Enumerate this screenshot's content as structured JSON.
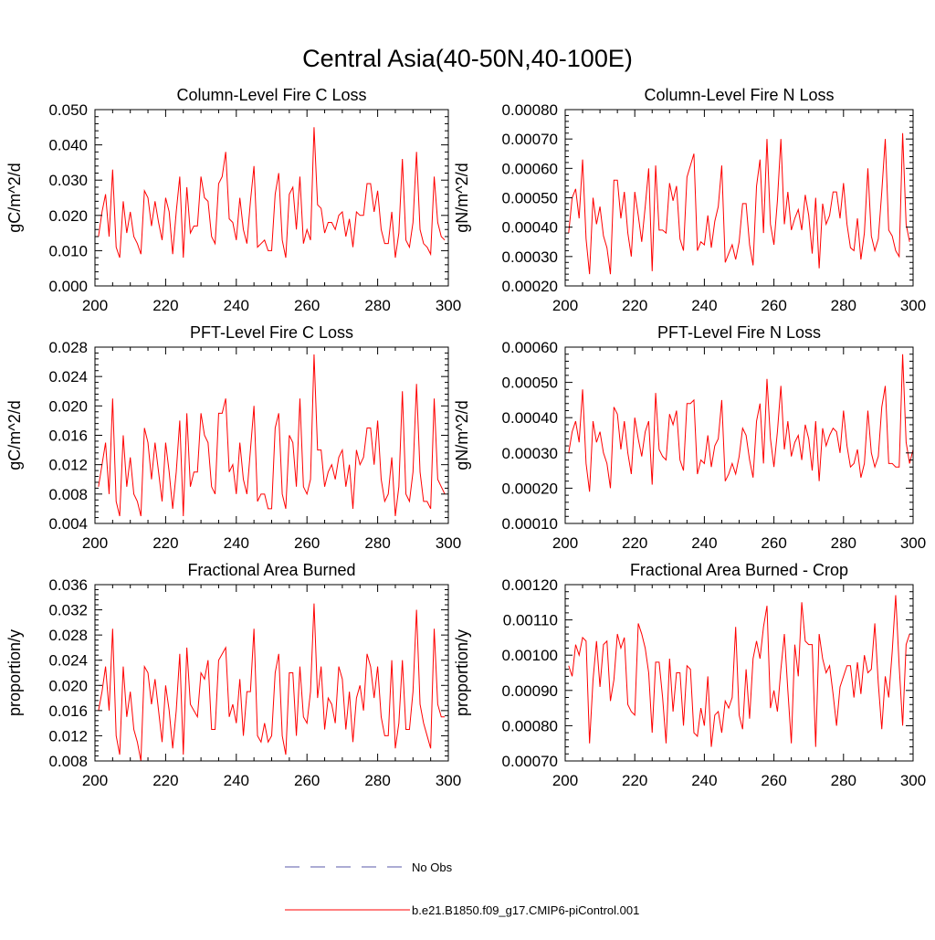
{
  "figure": {
    "title": "Central Asia(40-50N,40-100E)",
    "colors": {
      "model": "#ff0000",
      "obs": "#5a5aa8",
      "axis": "#000000"
    },
    "legend": {
      "entries": [
        {
          "label": "No Obs",
          "style": "dashed",
          "color": "#5a5aa8"
        },
        {
          "label": "b.e21.B1850.f09_g17.CMIP6-piControl.001",
          "style": "solid",
          "color": "#ff0000"
        }
      ]
    }
  },
  "chart_data": [
    {
      "type": "line",
      "title": "Column-Level Fire C Loss",
      "ylabel": "gC/m^2/d",
      "xlabel": "",
      "xlim": [
        200,
        300
      ],
      "ylim": [
        0.0,
        0.05
      ],
      "xticks": [
        "200",
        "220",
        "240",
        "260",
        "280",
        "300"
      ],
      "yticks": [
        "0.000",
        "0.010",
        "0.020",
        "0.030",
        "0.040",
        "0.050"
      ],
      "series": [
        {
          "name": "b.e21.B1850.f09_g17.CMIP6-piControl.001",
          "x_start": 201,
          "x_step": 1,
          "values": [
            0.014,
            0.021,
            0.026,
            0.014,
            0.033,
            0.011,
            0.008,
            0.024,
            0.015,
            0.021,
            0.014,
            0.012,
            0.009,
            0.027,
            0.025,
            0.017,
            0.024,
            0.018,
            0.013,
            0.025,
            0.021,
            0.009,
            0.021,
            0.031,
            0.008,
            0.028,
            0.015,
            0.017,
            0.017,
            0.031,
            0.025,
            0.024,
            0.014,
            0.012,
            0.029,
            0.031,
            0.038,
            0.019,
            0.018,
            0.013,
            0.025,
            0.016,
            0.012,
            0.024,
            0.034,
            0.011,
            0.012,
            0.013,
            0.01,
            0.01,
            0.026,
            0.032,
            0.013,
            0.008,
            0.026,
            0.028,
            0.016,
            0.031,
            0.012,
            0.016,
            0.013,
            0.045,
            0.023,
            0.022,
            0.015,
            0.018,
            0.018,
            0.016,
            0.02,
            0.021,
            0.014,
            0.019,
            0.011,
            0.021,
            0.02,
            0.02,
            0.029,
            0.029,
            0.021,
            0.027,
            0.016,
            0.012,
            0.012,
            0.021,
            0.008,
            0.015,
            0.036,
            0.013,
            0.011,
            0.018,
            0.038,
            0.016,
            0.012,
            0.011,
            0.009,
            0.031,
            0.018,
            0.014,
            0.013
          ]
        }
      ]
    },
    {
      "type": "line",
      "title": "Column-Level Fire N Loss",
      "ylabel": "gN/m^2/d",
      "xlabel": "",
      "xlim": [
        200,
        300
      ],
      "ylim": [
        0.0002,
        0.0008
      ],
      "xticks": [
        "200",
        "220",
        "240",
        "260",
        "280",
        "300"
      ],
      "yticks": [
        "0.00020",
        "0.00030",
        "0.00040",
        "0.00050",
        "0.00060",
        "0.00070",
        "0.00080"
      ],
      "series": [
        {
          "name": "b.e21.B1850.f09_g17.CMIP6-piControl.001",
          "x_start": 201,
          "x_step": 1,
          "values": [
            0.00038,
            0.0005,
            0.00053,
            0.00043,
            0.00063,
            0.00036,
            0.00024,
            0.0005,
            0.00041,
            0.00047,
            0.00037,
            0.00033,
            0.00024,
            0.00056,
            0.00056,
            0.00043,
            0.00052,
            0.00038,
            0.0003,
            0.00052,
            0.00044,
            0.00035,
            0.00047,
            0.0006,
            0.00025,
            0.00061,
            0.00039,
            0.00039,
            0.00038,
            0.00055,
            0.00049,
            0.00054,
            0.00036,
            0.00032,
            0.00057,
            0.00061,
            0.00065,
            0.00032,
            0.00035,
            0.00034,
            0.00044,
            0.00033,
            0.00042,
            0.00047,
            0.00061,
            0.00028,
            0.00031,
            0.00034,
            0.00029,
            0.00035,
            0.00048,
            0.00048,
            0.00034,
            0.00027,
            0.00054,
            0.00063,
            0.00038,
            0.0007,
            0.00041,
            0.00034,
            0.00049,
            0.0007,
            0.00041,
            0.00052,
            0.00039,
            0.00043,
            0.00046,
            0.00039,
            0.00051,
            0.00044,
            0.00031,
            0.0005,
            0.00026,
            0.00048,
            0.00041,
            0.00044,
            0.00052,
            0.00052,
            0.00043,
            0.00055,
            0.00041,
            0.00033,
            0.00032,
            0.00043,
            0.00029,
            0.00038,
            0.0006,
            0.00037,
            0.00032,
            0.00036,
            0.00052,
            0.0007,
            0.00039,
            0.00037,
            0.00032,
            0.0003,
            0.00072,
            0.00041,
            0.00035
          ]
        }
      ]
    },
    {
      "type": "line",
      "title": "PFT-Level Fire C Loss",
      "ylabel": "gC/m^2/d",
      "xlabel": "",
      "xlim": [
        200,
        300
      ],
      "ylim": [
        0.004,
        0.028
      ],
      "xticks": [
        "200",
        "220",
        "240",
        "260",
        "280",
        "300"
      ],
      "yticks": [
        "0.004",
        "0.008",
        "0.012",
        "0.016",
        "0.020",
        "0.024",
        "0.028"
      ],
      "series": [
        {
          "name": "b.e21.B1850.f09_g17.CMIP6-piControl.001",
          "x_start": 201,
          "x_step": 1,
          "values": [
            0.009,
            0.012,
            0.015,
            0.008,
            0.021,
            0.007,
            0.005,
            0.016,
            0.009,
            0.013,
            0.008,
            0.007,
            0.005,
            0.017,
            0.015,
            0.01,
            0.015,
            0.011,
            0.007,
            0.015,
            0.011,
            0.006,
            0.011,
            0.018,
            0.005,
            0.019,
            0.009,
            0.011,
            0.011,
            0.019,
            0.016,
            0.015,
            0.009,
            0.008,
            0.019,
            0.019,
            0.021,
            0.011,
            0.012,
            0.008,
            0.015,
            0.01,
            0.008,
            0.014,
            0.02,
            0.007,
            0.008,
            0.008,
            0.006,
            0.006,
            0.017,
            0.019,
            0.008,
            0.006,
            0.016,
            0.015,
            0.009,
            0.021,
            0.009,
            0.008,
            0.01,
            0.027,
            0.014,
            0.014,
            0.009,
            0.011,
            0.012,
            0.01,
            0.013,
            0.014,
            0.009,
            0.012,
            0.006,
            0.014,
            0.012,
            0.013,
            0.017,
            0.017,
            0.012,
            0.018,
            0.01,
            0.007,
            0.008,
            0.013,
            0.005,
            0.009,
            0.022,
            0.008,
            0.007,
            0.011,
            0.023,
            0.011,
            0.007,
            0.007,
            0.006,
            0.021,
            0.01,
            0.009,
            0.008
          ]
        }
      ]
    },
    {
      "type": "line",
      "title": "PFT-Level Fire N Loss",
      "ylabel": "gN/m^2/d",
      "xlabel": "",
      "xlim": [
        200,
        300
      ],
      "ylim": [
        0.0001,
        0.0006
      ],
      "xticks": [
        "200",
        "220",
        "240",
        "260",
        "280",
        "300"
      ],
      "yticks": [
        "0.00010",
        "0.00020",
        "0.00030",
        "0.00040",
        "0.00050",
        "0.00060"
      ],
      "series": [
        {
          "name": "b.e21.B1850.f09_g17.CMIP6-piControl.001",
          "x_start": 201,
          "x_step": 1,
          "values": [
            0.0003,
            0.00036,
            0.00039,
            0.00033,
            0.00048,
            0.00027,
            0.00019,
            0.00039,
            0.00033,
            0.00036,
            0.0003,
            0.00027,
            0.0002,
            0.00043,
            0.00041,
            0.00031,
            0.00039,
            0.0003,
            0.00024,
            0.0004,
            0.00034,
            0.00029,
            0.00036,
            0.00039,
            0.00021,
            0.00047,
            0.00031,
            0.00029,
            0.00028,
            0.00041,
            0.00038,
            0.00042,
            0.00028,
            0.00025,
            0.00044,
            0.00044,
            0.00045,
            0.00024,
            0.00028,
            0.00027,
            0.00035,
            0.00026,
            0.00032,
            0.00034,
            0.00045,
            0.00022,
            0.00024,
            0.00027,
            0.00024,
            0.00029,
            0.00037,
            0.00035,
            0.00028,
            0.00023,
            0.00039,
            0.00044,
            0.00027,
            0.00051,
            0.00034,
            0.00026,
            0.00036,
            0.00049,
            0.00031,
            0.00039,
            0.00029,
            0.00033,
            0.00035,
            0.00028,
            0.00038,
            0.00034,
            0.00025,
            0.00039,
            0.00022,
            0.00037,
            0.00032,
            0.00035,
            0.00037,
            0.00036,
            0.0003,
            0.00042,
            0.00032,
            0.00026,
            0.00027,
            0.00031,
            0.00023,
            0.00027,
            0.00042,
            0.0003,
            0.00026,
            0.00029,
            0.00043,
            0.00049,
            0.00027,
            0.00027,
            0.00026,
            0.00026,
            0.00058,
            0.00033,
            0.00027,
            0.00031
          ]
        }
      ]
    },
    {
      "type": "line",
      "title": "Fractional Area Burned",
      "ylabel": "proportion/y",
      "xlabel": "",
      "xlim": [
        200,
        300
      ],
      "ylim": [
        0.008,
        0.036
      ],
      "xticks": [
        "200",
        "220",
        "240",
        "260",
        "280",
        "300"
      ],
      "yticks": [
        "0.008",
        "0.012",
        "0.016",
        "0.020",
        "0.024",
        "0.028",
        "0.032",
        "0.036"
      ],
      "series": [
        {
          "name": "b.e21.B1850.f09_g17.CMIP6-piControl.001",
          "x_start": 201,
          "x_step": 1,
          "values": [
            0.016,
            0.019,
            0.023,
            0.016,
            0.029,
            0.012,
            0.009,
            0.023,
            0.015,
            0.019,
            0.013,
            0.011,
            0.008,
            0.023,
            0.022,
            0.017,
            0.021,
            0.016,
            0.011,
            0.02,
            0.016,
            0.01,
            0.016,
            0.025,
            0.009,
            0.026,
            0.017,
            0.016,
            0.015,
            0.022,
            0.021,
            0.024,
            0.013,
            0.013,
            0.024,
            0.025,
            0.026,
            0.015,
            0.017,
            0.014,
            0.021,
            0.012,
            0.019,
            0.019,
            0.029,
            0.012,
            0.011,
            0.014,
            0.011,
            0.012,
            0.022,
            0.025,
            0.012,
            0.009,
            0.022,
            0.022,
            0.012,
            0.023,
            0.015,
            0.014,
            0.019,
            0.033,
            0.018,
            0.023,
            0.013,
            0.018,
            0.017,
            0.014,
            0.023,
            0.021,
            0.013,
            0.019,
            0.011,
            0.018,
            0.02,
            0.016,
            0.025,
            0.023,
            0.018,
            0.023,
            0.015,
            0.012,
            0.012,
            0.024,
            0.01,
            0.014,
            0.024,
            0.013,
            0.013,
            0.019,
            0.032,
            0.017,
            0.014,
            0.012,
            0.01,
            0.029,
            0.017,
            0.015,
            0.015
          ]
        }
      ]
    },
    {
      "type": "line",
      "title": "Fractional Area Burned - Crop",
      "ylabel": "proportion/y",
      "xlabel": "",
      "xlim": [
        200,
        300
      ],
      "ylim": [
        0.0007,
        0.0012
      ],
      "xticks": [
        "200",
        "220",
        "240",
        "260",
        "280",
        "300"
      ],
      "yticks": [
        "0.00070",
        "0.00080",
        "0.00090",
        "0.00100",
        "0.00110",
        "0.00120"
      ],
      "series": [
        {
          "name": "b.e21.B1850.f09_g17.CMIP6-piControl.001",
          "x_start": 201,
          "x_step": 1,
          "values": [
            0.00097,
            0.00094,
            0.00103,
            0.001,
            0.00105,
            0.00104,
            0.00075,
            0.00093,
            0.00104,
            0.00091,
            0.00103,
            0.00104,
            0.00087,
            0.00093,
            0.00106,
            0.00102,
            0.00105,
            0.00086,
            0.00084,
            0.00083,
            0.00109,
            0.00106,
            0.00102,
            0.00095,
            0.00078,
            0.00098,
            0.00098,
            0.00088,
            0.00075,
            0.00099,
            0.00084,
            0.00095,
            0.00095,
            0.0008,
            0.00097,
            0.00096,
            0.00078,
            0.00077,
            0.00085,
            0.0008,
            0.00094,
            0.00074,
            0.00083,
            0.00084,
            0.00078,
            0.00087,
            0.00085,
            0.00088,
            0.00108,
            0.00083,
            0.00079,
            0.00096,
            0.00082,
            0.00099,
            0.00104,
            0.00099,
            0.00108,
            0.00114,
            0.00085,
            0.0009,
            0.00084,
            0.00096,
            0.00106,
            0.0009,
            0.00075,
            0.00103,
            0.00094,
            0.00115,
            0.00104,
            0.00103,
            0.00103,
            0.00074,
            0.00106,
            0.00099,
            0.00095,
            0.00097,
            0.00089,
            0.0008,
            0.00091,
            0.00094,
            0.00097,
            0.00097,
            0.00088,
            0.00098,
            0.00089,
            0.001,
            0.00095,
            0.00096,
            0.00109,
            0.00092,
            0.00079,
            0.00094,
            0.00088,
            0.00101,
            0.00117,
            0.00097,
            0.0008,
            0.00103,
            0.00106
          ]
        }
      ]
    }
  ]
}
